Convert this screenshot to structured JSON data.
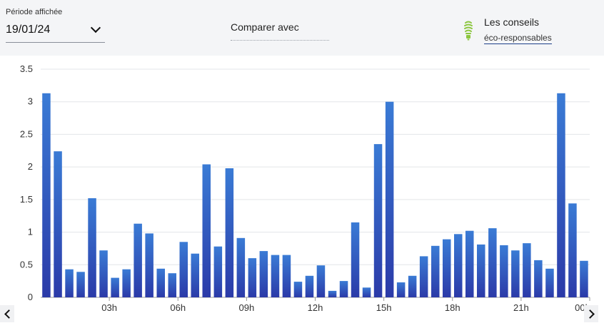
{
  "header": {
    "period_label": "Période affichée",
    "period_value": "19/01/24",
    "compare_label": "Comparer avec",
    "tips_title": "Les conseils",
    "tips_link": "éco-responsables",
    "bulb_icon": "eco-bulb-icon",
    "bulb_color": "#8cc63f"
  },
  "nav": {
    "prev_icon": "chevron-left-icon",
    "next_icon": "chevron-right-icon"
  },
  "chart_data": {
    "type": "bar",
    "yticks": [
      "0",
      "0.5",
      "1",
      "1.5",
      "2",
      "2.5",
      "3",
      "3.5"
    ],
    "ylim": [
      0,
      3.5
    ],
    "xticks": [
      "03h",
      "06h",
      "09h",
      "12h",
      "15h",
      "18h",
      "21h",
      "00h"
    ],
    "grid": true,
    "bar_color_top": "#3a7bd5",
    "bar_color_bottom": "#2b3aa8",
    "values": [
      3.13,
      2.24,
      0.43,
      0.39,
      1.52,
      0.72,
      0.3,
      0.43,
      1.13,
      0.98,
      0.44,
      0.37,
      0.85,
      0.67,
      2.04,
      0.78,
      1.98,
      0.91,
      0.6,
      0.71,
      0.65,
      0.65,
      0.24,
      0.33,
      0.49,
      0.1,
      0.25,
      1.15,
      0.15,
      2.35,
      3.0,
      0.23,
      0.33,
      0.63,
      0.79,
      0.89,
      0.97,
      1.02,
      0.81,
      1.06,
      0.8,
      0.72,
      0.83,
      0.57,
      0.44,
      3.13,
      1.44,
      0.56
    ]
  }
}
